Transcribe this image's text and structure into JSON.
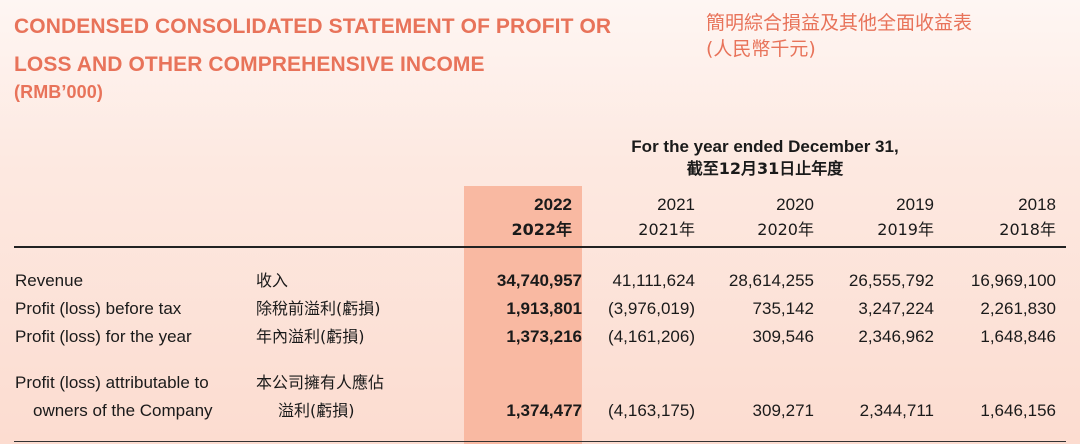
{
  "title": {
    "en_line1": "CONDENSED CONSOLIDATED STATEMENT OF PROFIT OR",
    "en_line2": "LOSS AND OTHER COMPREHENSIVE INCOME",
    "unit_en": "(RMB’000)",
    "zh_line1": "簡明綜合損益及其他全面收益表",
    "zh_line2": "(人民幣千元)"
  },
  "period": {
    "en": "For the year ended December 31,",
    "zh": "截至12月31日止年度"
  },
  "columns": [
    {
      "year": "2022",
      "year_zh": "2022年"
    },
    {
      "year": "2021",
      "year_zh": "2021年"
    },
    {
      "year": "2020",
      "year_zh": "2020年"
    },
    {
      "year": "2019",
      "year_zh": "2019年"
    },
    {
      "year": "2018",
      "year_zh": "2018年"
    }
  ],
  "rows": [
    {
      "label_en": "Revenue",
      "label_zh": "收入",
      "values": [
        "34,740,957",
        "41,111,624",
        "28,614,255",
        "26,555,792",
        "16,969,100"
      ]
    },
    {
      "label_en": "Profit (loss) before tax",
      "label_zh": "除稅前溢利(虧損)",
      "values": [
        "1,913,801",
        "(3,976,019)",
        "735,142",
        "3,247,224",
        "2,261,830"
      ]
    },
    {
      "label_en": "Profit (loss) for the year",
      "label_zh": "年內溢利(虧損)",
      "values": [
        "1,373,216",
        "(4,161,206)",
        "309,546",
        "2,346,962",
        "1,648,846"
      ]
    },
    {
      "label_en_line1": "Profit (loss) attributable to",
      "label_en_line2": "owners of the Company",
      "label_zh_line1": "本公司擁有人應佔",
      "label_zh_line2": "溢利(虧損)",
      "values": [
        "1,374,477",
        "(4,163,175)",
        "309,271",
        "2,344,711",
        "1,646,156"
      ]
    }
  ],
  "colors": {
    "accent": "#e8735a",
    "highlight": "#f9b9a2"
  }
}
